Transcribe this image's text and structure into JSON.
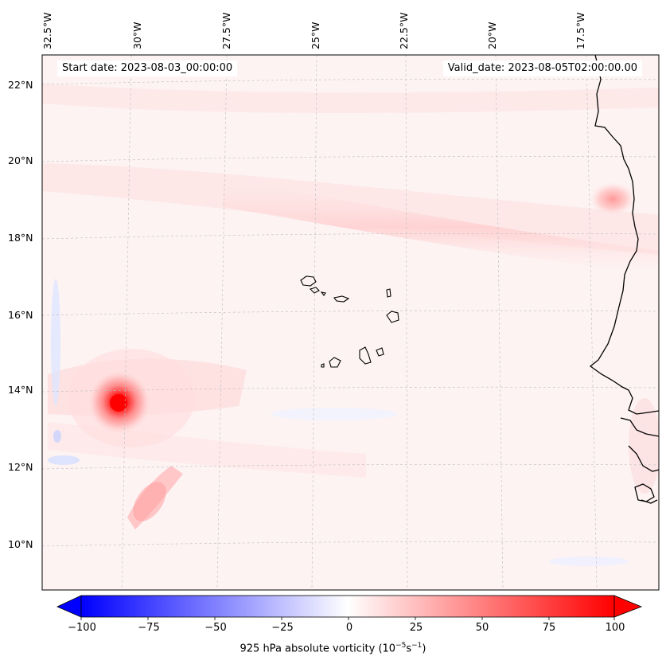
{
  "header": {
    "start_date": "Start date: 2023-08-03_00:00:00",
    "valid_date": "Valid_date: 2023-08-05T02:00:00.00"
  },
  "axes": {
    "lon_labels": [
      "32.5°W",
      "30°W",
      "27.5°W",
      "25°W",
      "22.5°W",
      "20°W",
      "17.5°W"
    ],
    "lat_labels": [
      "22°N",
      "20°N",
      "18°N",
      "16°N",
      "14°N",
      "12°N",
      "10°N"
    ],
    "gridlines": true
  },
  "colorbar": {
    "ticks": [
      "−100",
      "−75",
      "−50",
      "−25",
      "0",
      "25",
      "50",
      "75",
      "100"
    ],
    "label_prefix": "925 hPa absolute vorticity (10",
    "label_exp1": "−5",
    "label_mid": "s",
    "label_exp2": "−1",
    "label_suffix": ")",
    "range": [
      -100,
      100
    ],
    "extend": "both",
    "cmap": "bwr",
    "colors": {
      "neg": "#0000ff",
      "zero": "#ffffff",
      "pos": "#ff0000"
    }
  },
  "map": {
    "coastline_color": "#000000",
    "islands": "Cape Verde",
    "vortex_max_value": 100
  }
}
